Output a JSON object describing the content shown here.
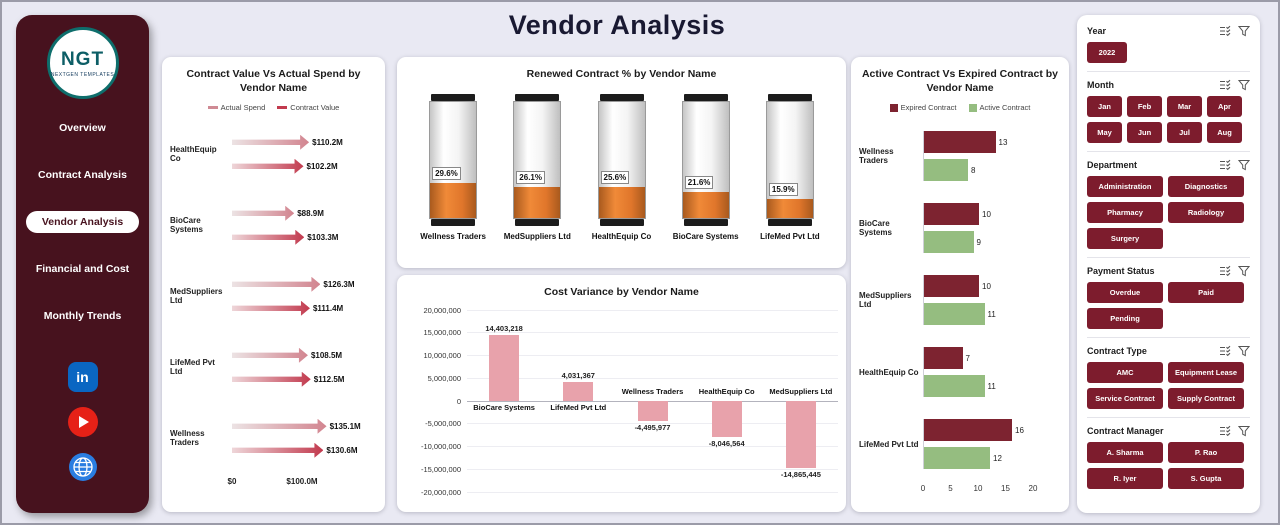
{
  "title": "Vendor Analysis",
  "sidebar": {
    "logo": {
      "text": "NGT",
      "caption": "NEXTGEN TEMPLATES"
    },
    "items": [
      {
        "label": "Overview",
        "active": false
      },
      {
        "label": "Contract Analysis",
        "active": false
      },
      {
        "label": "Vendor Analysis",
        "active": true
      },
      {
        "label": "Financial and Cost",
        "active": false
      },
      {
        "label": "Monthly Trends",
        "active": false
      }
    ],
    "social": [
      {
        "name": "linkedin-icon",
        "glyph": "in"
      },
      {
        "name": "youtube-icon"
      },
      {
        "name": "globe-icon"
      }
    ]
  },
  "chart_data": [
    {
      "id": "contract-vs-spend",
      "type": "bar",
      "orientation": "horizontal-arrows",
      "title": "Contract Value Vs Actual Spend by Vendor Name",
      "categories": [
        "HealthEquip Co",
        "BioCare Systems",
        "MedSuppliers Ltd",
        "LifeMed Pvt Ltd",
        "Wellness Traders"
      ],
      "series": [
        {
          "name": "Actual Spend",
          "values": [
            110.2,
            88.9,
            126.3,
            108.5,
            135.1
          ],
          "labels": [
            "$110.2M",
            "$88.9M",
            "$126.3M",
            "$108.5M",
            "$135.1M"
          ]
        },
        {
          "name": "Contract Value",
          "values": [
            102.2,
            103.3,
            111.4,
            112.5,
            130.6
          ],
          "labels": [
            "$102.2M",
            "$103.3M",
            "$111.4M",
            "$112.5M",
            "$130.6M"
          ]
        }
      ],
      "x_ticks": [
        "$0",
        "$100.0M"
      ],
      "unit": "USD millions",
      "legend_position": "top"
    },
    {
      "id": "renewed-contract-pct",
      "type": "bar",
      "subtype": "battery-gauge",
      "title": "Renewed Contract % by Vendor Name",
      "categories": [
        "Wellness Traders",
        "MedSuppliers Ltd",
        "HealthEquip Co",
        "BioCare Systems",
        "LifeMed Pvt Ltd"
      ],
      "values": [
        29.6,
        26.1,
        25.6,
        21.6,
        15.9
      ],
      "labels": [
        "29.6%",
        "26.1%",
        "25.6%",
        "21.6%",
        "15.9%"
      ],
      "ylim": [
        0,
        100
      ]
    },
    {
      "id": "cost-variance",
      "type": "bar",
      "title": "Cost Variance by Vendor Name",
      "categories": [
        "BioCare Systems",
        "LifeMed Pvt Ltd",
        "Wellness Traders",
        "HealthEquip Co",
        "MedSuppliers Ltd"
      ],
      "values": [
        14403218,
        4031367,
        -4495977,
        -8046564,
        -14865445
      ],
      "labels": [
        "14,403,218",
        "4,031,367",
        "-4,495,977",
        "-8,046,564",
        "-14,865,445"
      ],
      "ylim": [
        -20000000,
        20000000
      ],
      "y_ticks": [
        "20,000,000",
        "15,000,000",
        "10,000,000",
        "5,000,000",
        "0",
        "-5,000,000",
        "-10,000,000",
        "-15,000,000",
        "-20,000,000"
      ],
      "grid": true
    },
    {
      "id": "active-vs-expired",
      "type": "bar",
      "orientation": "horizontal",
      "title": "Active Contract Vs Expired Contract by Vendor Name",
      "categories": [
        "Wellness Traders",
        "BioCare Systems",
        "MedSuppliers Ltd",
        "HealthEquip Co",
        "LifeMed Pvt Ltd"
      ],
      "series": [
        {
          "name": "Expired Contract",
          "values": [
            13,
            10,
            10,
            7,
            16
          ]
        },
        {
          "name": "Active Contract",
          "values": [
            8,
            9,
            11,
            11,
            12
          ]
        }
      ],
      "xlim": [
        0,
        20
      ],
      "x_ticks": [
        "0",
        "5",
        "10",
        "15",
        "20"
      ],
      "legend_position": "top"
    }
  ],
  "filters": {
    "year": {
      "label": "Year",
      "options": [
        "2022"
      ]
    },
    "month": {
      "label": "Month",
      "options": [
        "Jan",
        "Feb",
        "Mar",
        "Apr",
        "May",
        "Jun",
        "Jul",
        "Aug"
      ]
    },
    "department": {
      "label": "Department",
      "options": [
        "Administration",
        "Diagnostics",
        "Pharmacy",
        "Radiology",
        "Surgery"
      ]
    },
    "payment_status": {
      "label": "Payment Status",
      "options": [
        "Overdue",
        "Paid",
        "Pending"
      ]
    },
    "contract_type": {
      "label": "Contract Type",
      "options": [
        "AMC",
        "Equipment Lease",
        "Service Contract",
        "Supply Contract"
      ]
    },
    "contract_manager": {
      "label": "Contract Manager",
      "options": [
        "A. Sharma",
        "P. Rao",
        "R. Iyer",
        "S. Gupta"
      ]
    }
  },
  "colors": {
    "background": "#e9e9f3",
    "sidebar_bg": "#47121e",
    "button_maroon": "#7d1c2d",
    "expired_contract": "#7d2330",
    "active_contract": "#95bd80",
    "battery_fill_orange": "#e0762b",
    "cost_bar_pink": "#e8a2ab",
    "arrow_red": "#c23a4e",
    "title_color": "#191932"
  }
}
